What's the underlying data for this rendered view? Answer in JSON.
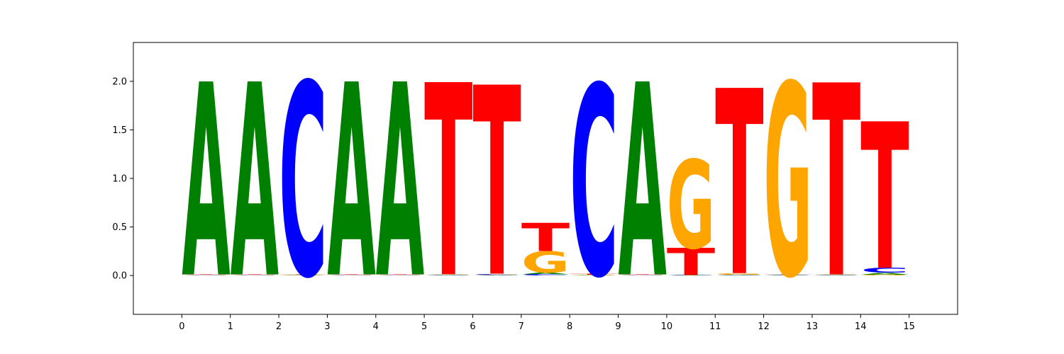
{
  "chart_data": {
    "type": "sequence-logo",
    "title": "",
    "xlabel": "",
    "ylabel": "",
    "xlim": [
      -1,
      16
    ],
    "ylim": [
      -0.4,
      2.4
    ],
    "xticks": [
      "0",
      "1",
      "2",
      "3",
      "4",
      "5",
      "6",
      "7",
      "8",
      "9",
      "10",
      "11",
      "12",
      "13",
      "14",
      "15"
    ],
    "yticks": [
      "0.0",
      "0.5",
      "1.0",
      "1.5",
      "2.0"
    ],
    "grid": false,
    "colors": {
      "A": "#008000",
      "C": "#0000ff",
      "G": "#ffa500",
      "T": "#ff0000"
    },
    "positions": [
      {
        "x": 0,
        "stack": [
          {
            "letter": "C",
            "value": 0.004
          },
          {
            "letter": "G",
            "value": 0.004
          },
          {
            "letter": "T",
            "value": 0.004
          },
          {
            "letter": "A",
            "value": 1.99
          }
        ]
      },
      {
        "x": 1,
        "stack": [
          {
            "letter": "C",
            "value": 0.004
          },
          {
            "letter": "G",
            "value": 0.004
          },
          {
            "letter": "T",
            "value": 0.004
          },
          {
            "letter": "A",
            "value": 1.99
          }
        ]
      },
      {
        "x": 2,
        "stack": [
          {
            "letter": "A",
            "value": 0.004
          },
          {
            "letter": "G",
            "value": 0.004
          },
          {
            "letter": "T",
            "value": 0.004
          },
          {
            "letter": "C",
            "value": 1.99
          }
        ]
      },
      {
        "x": 3,
        "stack": [
          {
            "letter": "C",
            "value": 0.004
          },
          {
            "letter": "G",
            "value": 0.004
          },
          {
            "letter": "T",
            "value": 0.004
          },
          {
            "letter": "A",
            "value": 1.99
          }
        ]
      },
      {
        "x": 4,
        "stack": [
          {
            "letter": "C",
            "value": 0.004
          },
          {
            "letter": "G",
            "value": 0.004
          },
          {
            "letter": "T",
            "value": 0.004
          },
          {
            "letter": "A",
            "value": 1.99
          }
        ]
      },
      {
        "x": 5,
        "stack": [
          {
            "letter": "A",
            "value": 0.004
          },
          {
            "letter": "C",
            "value": 0.004
          },
          {
            "letter": "G",
            "value": 0.006
          },
          {
            "letter": "T",
            "value": 1.98
          }
        ]
      },
      {
        "x": 6,
        "stack": [
          {
            "letter": "A",
            "value": 0.005
          },
          {
            "letter": "C",
            "value": 0.008
          },
          {
            "letter": "G",
            "value": 0.006
          },
          {
            "letter": "T",
            "value": 1.95
          }
        ]
      },
      {
        "x": 7,
        "stack": [
          {
            "letter": "C",
            "value": 0.012
          },
          {
            "letter": "A",
            "value": 0.02
          },
          {
            "letter": "G",
            "value": 0.22
          },
          {
            "letter": "T",
            "value": 0.29
          }
        ]
      },
      {
        "x": 8,
        "stack": [
          {
            "letter": "A",
            "value": 0.004
          },
          {
            "letter": "G",
            "value": 0.004
          },
          {
            "letter": "T",
            "value": 0.008
          },
          {
            "letter": "C",
            "value": 1.96
          }
        ]
      },
      {
        "x": 9,
        "stack": [
          {
            "letter": "C",
            "value": 0.004
          },
          {
            "letter": "G",
            "value": 0.004
          },
          {
            "letter": "T",
            "value": 0.004
          },
          {
            "letter": "A",
            "value": 1.99
          }
        ]
      },
      {
        "x": 10,
        "stack": [
          {
            "letter": "A",
            "value": 0.003
          },
          {
            "letter": "C",
            "value": 0.003
          },
          {
            "letter": "T",
            "value": 0.28
          },
          {
            "letter": "G",
            "value": 0.91
          }
        ]
      },
      {
        "x": 11,
        "stack": [
          {
            "letter": "A",
            "value": 0.005
          },
          {
            "letter": "C",
            "value": 0.005
          },
          {
            "letter": "G",
            "value": 0.015
          },
          {
            "letter": "T",
            "value": 1.91
          }
        ]
      },
      {
        "x": 12,
        "stack": [
          {
            "letter": "A",
            "value": 0.004
          },
          {
            "letter": "C",
            "value": 0.004
          },
          {
            "letter": "T",
            "value": 0.006
          },
          {
            "letter": "G",
            "value": 1.98
          }
        ]
      },
      {
        "x": 13,
        "stack": [
          {
            "letter": "A",
            "value": 0.004
          },
          {
            "letter": "C",
            "value": 0.004
          },
          {
            "letter": "G",
            "value": 0.004
          },
          {
            "letter": "T",
            "value": 1.98
          }
        ]
      },
      {
        "x": 14,
        "stack": [
          {
            "letter": "G",
            "value": 0.01
          },
          {
            "letter": "A",
            "value": 0.02
          },
          {
            "letter": "C",
            "value": 0.05
          },
          {
            "letter": "T",
            "value": 1.51
          }
        ]
      }
    ]
  }
}
